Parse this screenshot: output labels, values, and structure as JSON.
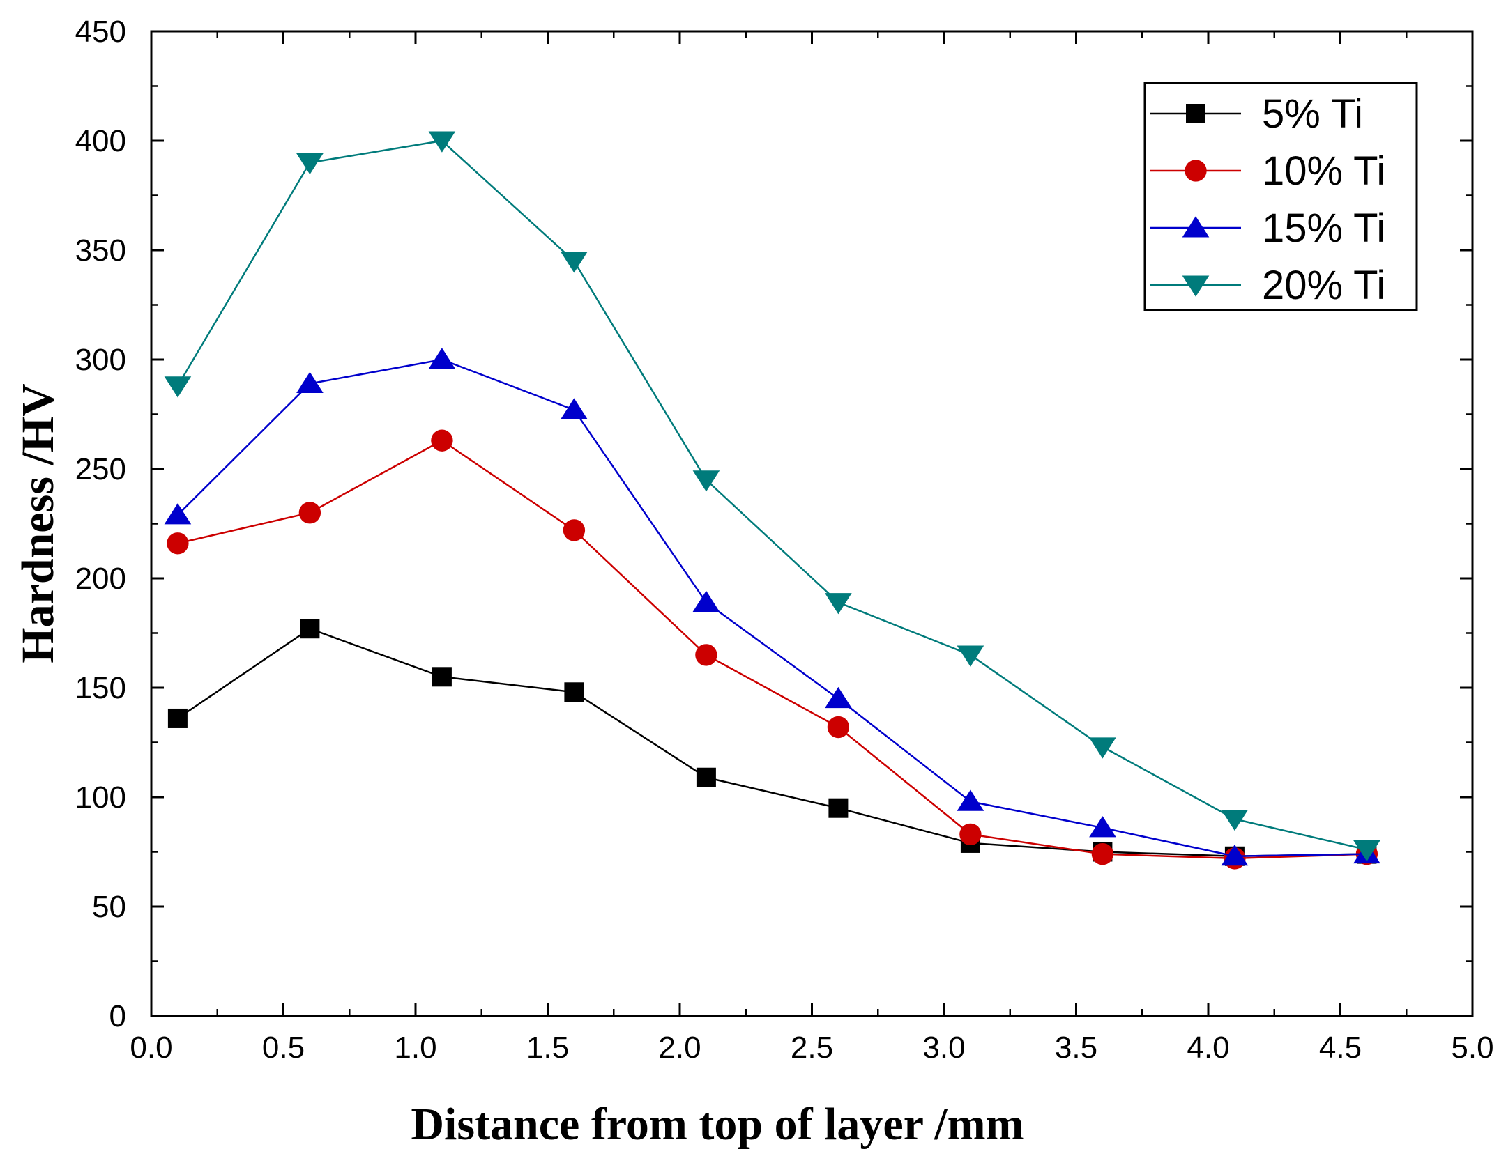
{
  "chart_data": {
    "type": "line",
    "title": "",
    "xlabel": "Distance from top of layer /mm",
    "ylabel": "Hardness /HV",
    "xlim": [
      0.0,
      5.0
    ],
    "ylim": [
      0,
      450
    ],
    "x": [
      0.1,
      0.6,
      1.1,
      1.6,
      2.1,
      2.6,
      3.1,
      3.6,
      4.1,
      4.6
    ],
    "series": [
      {
        "name": "5% Ti",
        "color": "#000000",
        "marker": "square",
        "values": [
          136,
          177,
          155,
          148,
          109,
          95,
          79,
          75,
          73,
          74
        ]
      },
      {
        "name": "10% Ti",
        "color": "#cc0000",
        "marker": "circle",
        "values": [
          216,
          230,
          263,
          222,
          165,
          132,
          83,
          74,
          72,
          74
        ]
      },
      {
        "name": "15% Ti",
        "color": "#0000cc",
        "marker": "triangle-up",
        "values": [
          229,
          289,
          300,
          277,
          189,
          145,
          98,
          86,
          73,
          74
        ]
      },
      {
        "name": "20% Ti",
        "color": "#007b7b",
        "marker": "triangle-down",
        "values": [
          288,
          390,
          400,
          345,
          245,
          189,
          165,
          123,
          90,
          76
        ]
      }
    ],
    "x_ticks": [
      "0.0",
      "0.5",
      "1.0",
      "1.5",
      "2.0",
      "2.5",
      "3.0",
      "3.5",
      "4.0",
      "4.5",
      "5.0"
    ],
    "y_ticks": [
      "0",
      "50",
      "100",
      "150",
      "200",
      "250",
      "300",
      "350",
      "400",
      "450"
    ],
    "legend_position": "top-right",
    "grid": false
  }
}
